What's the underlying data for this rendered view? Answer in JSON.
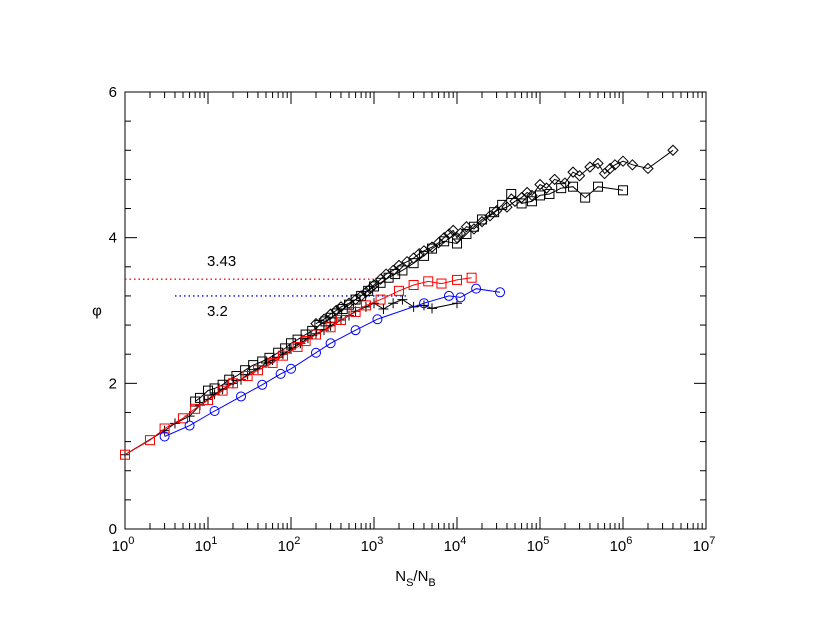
{
  "chart_data": {
    "type": "scatter",
    "title": "",
    "xlabel": "N_S/N_B",
    "ylabel": "φ",
    "xscale": "log",
    "xlim": [
      1,
      10000000
    ],
    "ylim": [
      0,
      6
    ],
    "grid": false,
    "x_tick_labels": [
      {
        "base": "10",
        "exp": "0"
      },
      {
        "base": "10",
        "exp": "1"
      },
      {
        "base": "10",
        "exp": "2"
      },
      {
        "base": "10",
        "exp": "3"
      },
      {
        "base": "10",
        "exp": "4"
      },
      {
        "base": "10",
        "exp": "5"
      },
      {
        "base": "10",
        "exp": "6"
      },
      {
        "base": "10",
        "exp": "7"
      }
    ],
    "y_tick_labels": [
      "0",
      "2",
      "4",
      "6"
    ],
    "reference_lines": [
      {
        "label": "3.43",
        "value": 3.43,
        "x_range": [
          1,
          1000
        ],
        "color": "#ff0000",
        "style": "dotted"
      },
      {
        "label": "3.2",
        "value": 3.2,
        "x_range": [
          4,
          2500
        ],
        "color": "#0000ff",
        "style": "dotted"
      }
    ],
    "series": [
      {
        "name": "diamonds",
        "marker": "diamond",
        "color": "#000000",
        "points": [
          [
            200,
            2.82
          ],
          [
            250,
            2.88
          ],
          [
            300,
            2.95
          ],
          [
            350,
            3.0
          ],
          [
            400,
            3.05
          ],
          [
            500,
            3.1
          ],
          [
            600,
            3.15
          ],
          [
            700,
            3.2
          ],
          [
            800,
            3.25
          ],
          [
            900,
            3.3
          ],
          [
            1000,
            3.35
          ],
          [
            1200,
            3.43
          ],
          [
            1400,
            3.5
          ],
          [
            1700,
            3.55
          ],
          [
            2000,
            3.62
          ],
          [
            2500,
            3.67
          ],
          [
            3000,
            3.72
          ],
          [
            3500,
            3.78
          ],
          [
            4000,
            3.82
          ],
          [
            5000,
            3.87
          ],
          [
            6000,
            3.93
          ],
          [
            7000,
            4.0
          ],
          [
            8000,
            4.05
          ],
          [
            9000,
            4.1
          ],
          [
            10000,
            4.0
          ],
          [
            11000,
            4.06
          ],
          [
            13000,
            4.15
          ],
          [
            16000,
            4.12
          ],
          [
            20000,
            4.22
          ],
          [
            25000,
            4.3
          ],
          [
            30000,
            4.37
          ],
          [
            40000,
            4.42
          ],
          [
            50000,
            4.5
          ],
          [
            60000,
            4.55
          ],
          [
            70000,
            4.62
          ],
          [
            80000,
            4.58
          ],
          [
            100000,
            4.73
          ],
          [
            120000,
            4.68
          ],
          [
            150000,
            4.8
          ],
          [
            200000,
            4.75
          ],
          [
            250000,
            4.9
          ],
          [
            300000,
            4.85
          ],
          [
            400000,
            4.97
          ],
          [
            500000,
            5.02
          ],
          [
            600000,
            4.88
          ],
          [
            700000,
            4.95
          ],
          [
            800000,
            5.0
          ],
          [
            1000000,
            5.05
          ],
          [
            1300000,
            5.0
          ],
          [
            2000000,
            4.95
          ],
          [
            4000000,
            5.2
          ]
        ]
      },
      {
        "name": "black squares",
        "marker": "square",
        "color": "#000000",
        "points": [
          [
            7,
            1.75
          ],
          [
            8,
            1.8
          ],
          [
            10,
            1.9
          ],
          [
            12,
            1.93
          ],
          [
            15,
            1.98
          ],
          [
            18,
            2.05
          ],
          [
            22,
            2.1
          ],
          [
            28,
            2.18
          ],
          [
            35,
            2.25
          ],
          [
            45,
            2.3
          ],
          [
            55,
            2.35
          ],
          [
            70,
            2.42
          ],
          [
            85,
            2.48
          ],
          [
            100,
            2.55
          ],
          [
            120,
            2.6
          ],
          [
            150,
            2.67
          ],
          [
            180,
            2.72
          ],
          [
            220,
            2.8
          ],
          [
            260,
            2.85
          ],
          [
            300,
            2.9
          ],
          [
            360,
            2.96
          ],
          [
            420,
            3.02
          ],
          [
            500,
            3.08
          ],
          [
            600,
            3.15
          ],
          [
            700,
            3.2
          ],
          [
            850,
            3.27
          ],
          [
            1000,
            3.33
          ],
          [
            1200,
            3.38
          ],
          [
            1500,
            3.45
          ],
          [
            1800,
            3.5
          ],
          [
            2200,
            3.55
          ],
          [
            3000,
            3.65
          ],
          [
            4000,
            3.75
          ],
          [
            5000,
            3.85
          ],
          [
            7000,
            3.95
          ],
          [
            10000,
            3.92
          ],
          [
            13000,
            4.05
          ],
          [
            16000,
            4.15
          ],
          [
            20000,
            4.25
          ],
          [
            28000,
            4.35
          ],
          [
            35000,
            4.45
          ],
          [
            45000,
            4.6
          ],
          [
            60000,
            4.47
          ],
          [
            80000,
            4.5
          ],
          [
            100000,
            4.58
          ],
          [
            130000,
            4.6
          ],
          [
            180000,
            4.68
          ],
          [
            250000,
            4.7
          ],
          [
            350000,
            4.55
          ],
          [
            500000,
            4.7
          ],
          [
            1000000,
            4.65
          ]
        ]
      },
      {
        "name": "plus",
        "marker": "plus",
        "color": "#000000",
        "points": [
          [
            1,
            1.02
          ],
          [
            3,
            1.35
          ],
          [
            4,
            1.45
          ],
          [
            6,
            1.55
          ],
          [
            8,
            1.7
          ],
          [
            10,
            1.78
          ],
          [
            12,
            1.85
          ],
          [
            15,
            1.92
          ],
          [
            20,
            2.0
          ],
          [
            25,
            2.05
          ],
          [
            30,
            2.12
          ],
          [
            40,
            2.2
          ],
          [
            50,
            2.28
          ],
          [
            60,
            2.32
          ],
          [
            80,
            2.4
          ],
          [
            100,
            2.47
          ],
          [
            130,
            2.55
          ],
          [
            160,
            2.62
          ],
          [
            200,
            2.68
          ],
          [
            250,
            2.73
          ],
          [
            300,
            2.79
          ],
          [
            400,
            2.87
          ],
          [
            500,
            2.93
          ],
          [
            600,
            2.99
          ],
          [
            800,
            3.05
          ],
          [
            1000,
            3.1
          ],
          [
            1300,
            3.02
          ],
          [
            1700,
            3.1
          ],
          [
            2200,
            3.15
          ],
          [
            3000,
            3.05
          ],
          [
            4000,
            3.07
          ],
          [
            5000,
            3.03
          ],
          [
            10000,
            3.1
          ]
        ]
      },
      {
        "name": "red squares",
        "marker": "square",
        "color": "#ff0000",
        "points": [
          [
            1,
            1.02
          ],
          [
            2,
            1.22
          ],
          [
            3,
            1.38
          ],
          [
            5,
            1.52
          ],
          [
            7,
            1.65
          ],
          [
            10,
            1.77
          ],
          [
            15,
            1.9
          ],
          [
            20,
            2.0
          ],
          [
            30,
            2.1
          ],
          [
            40,
            2.18
          ],
          [
            60,
            2.28
          ],
          [
            80,
            2.38
          ],
          [
            120,
            2.5
          ],
          [
            150,
            2.58
          ],
          [
            200,
            2.67
          ],
          [
            300,
            2.77
          ],
          [
            400,
            2.87
          ],
          [
            600,
            2.98
          ],
          [
            800,
            3.07
          ],
          [
            1200,
            3.15
          ],
          [
            2000,
            3.27
          ],
          [
            3000,
            3.35
          ],
          [
            4500,
            3.4
          ],
          [
            6500,
            3.37
          ],
          [
            10000,
            3.42
          ],
          [
            15000,
            3.45
          ]
        ]
      },
      {
        "name": "blue circles",
        "marker": "circle",
        "color": "#0000ff",
        "points": [
          [
            3,
            1.27
          ],
          [
            6,
            1.42
          ],
          [
            12,
            1.62
          ],
          [
            25,
            1.82
          ],
          [
            45,
            1.98
          ],
          [
            75,
            2.13
          ],
          [
            100,
            2.2
          ],
          [
            200,
            2.42
          ],
          [
            300,
            2.55
          ],
          [
            600,
            2.73
          ],
          [
            1100,
            2.88
          ],
          [
            4000,
            3.1
          ],
          [
            8000,
            3.2
          ],
          [
            11000,
            3.18
          ],
          [
            17000,
            3.3
          ],
          [
            33000,
            3.25
          ]
        ]
      }
    ]
  }
}
